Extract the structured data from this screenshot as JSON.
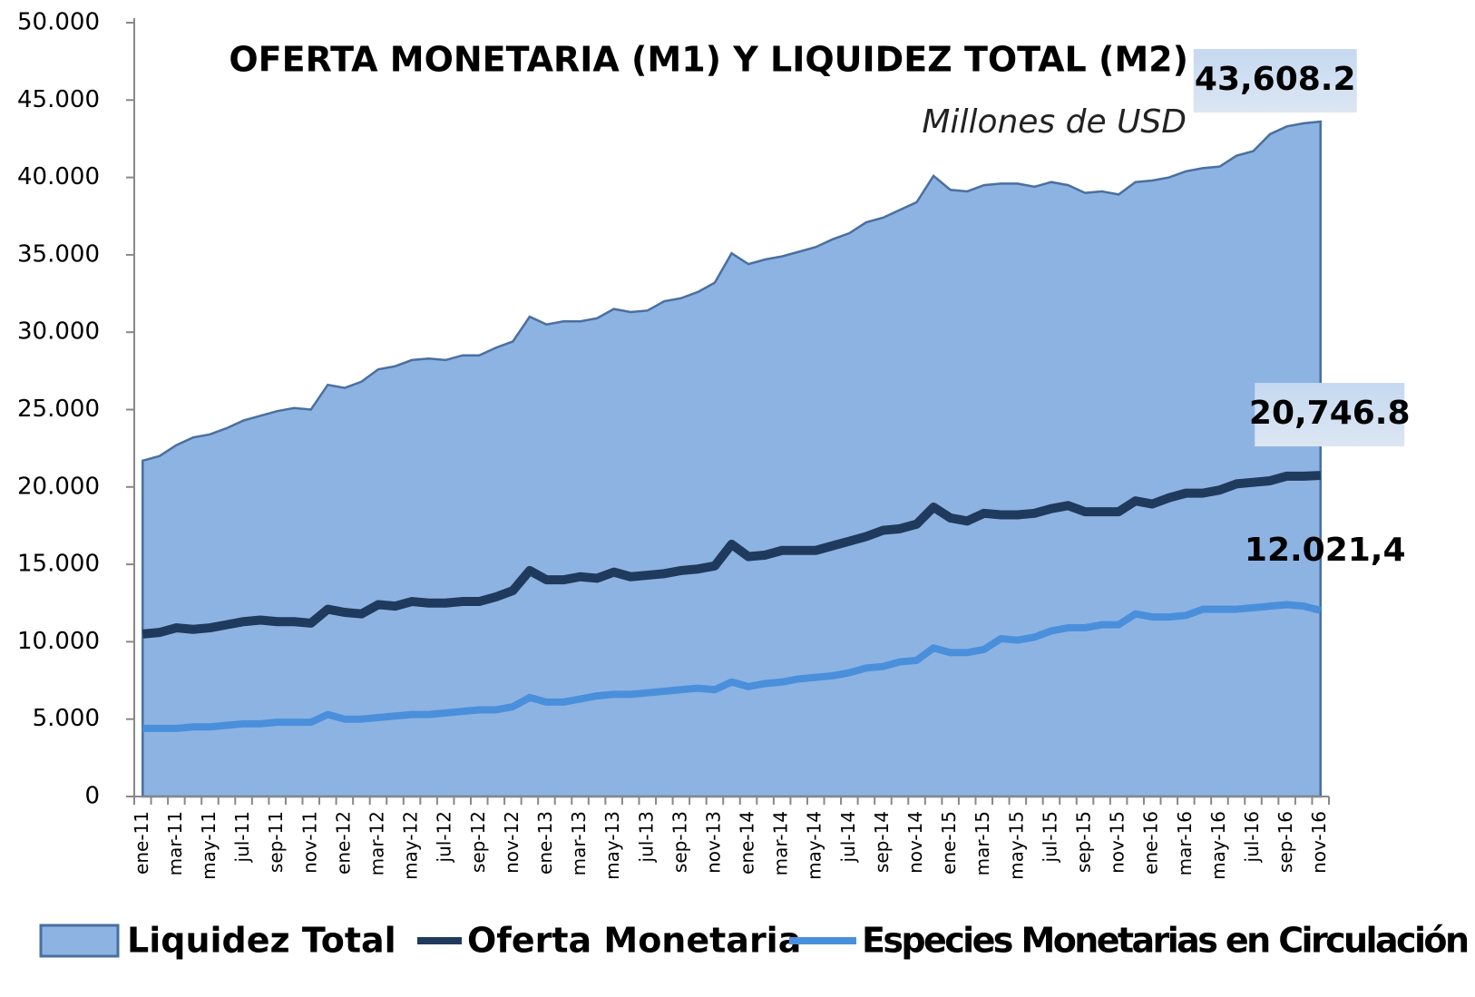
{
  "chart_data": {
    "type": "line",
    "title": "OFERTA MONETARIA (M1) Y LIQUIDEZ TOTAL (M2)",
    "subtitle": "Millones de USD",
    "categories": [
      "ene-11",
      null,
      "mar-11",
      null,
      "may-11",
      null,
      "jul-11",
      null,
      "sep-11",
      null,
      "nov-11",
      null,
      "ene-12",
      null,
      "mar-12",
      null,
      "may-12",
      null,
      "jul-12",
      null,
      "sep-12",
      null,
      "nov-12",
      null,
      "ene-13",
      null,
      "mar-13",
      null,
      "may-13",
      null,
      "jul-13",
      null,
      "sep-13",
      null,
      "nov-13",
      null,
      "ene-14",
      null,
      "mar-14",
      null,
      "may-14",
      null,
      "jul-14",
      null,
      "sep-14",
      null,
      "nov-14",
      null,
      "ene-15",
      null,
      "mar-15",
      null,
      "may-15",
      null,
      "jul-15",
      null,
      "sep-15",
      null,
      "nov-15",
      null,
      "ene-16",
      null,
      "mar-16",
      null,
      "may-16",
      null,
      "jul-16",
      null,
      "sep-16",
      null,
      "nov-16"
    ],
    "series": [
      {
        "name": "Liquidez Total",
        "type": "area",
        "color": "#8db3e2",
        "values": [
          21700,
          22000,
          22700,
          23200,
          23400,
          23800,
          24300,
          24600,
          24900,
          25100,
          25000,
          26600,
          26400,
          26800,
          27600,
          27800,
          28200,
          28300,
          28200,
          28500,
          28500,
          29000,
          29400,
          31000,
          30500,
          30700,
          30700,
          30900,
          31500,
          31300,
          31400,
          32000,
          32200,
          32600,
          33200,
          35100,
          34400,
          34700,
          34900,
          35200,
          35500,
          36000,
          36400,
          37100,
          37400,
          37900,
          38400,
          40100,
          39200,
          39100,
          39500,
          39600,
          39600,
          39400,
          39700,
          39500,
          39000,
          39100,
          38900,
          39700,
          39800,
          40000,
          40400,
          40600,
          40700,
          41400,
          41700,
          42800,
          43300,
          43500,
          43608.2
        ],
        "value_labels": [
          null,
          null,
          null,
          null,
          null,
          null,
          null,
          null,
          null,
          null,
          null,
          null,
          null,
          null,
          null,
          null,
          null,
          null,
          null,
          null,
          null,
          null,
          null,
          null,
          null,
          null,
          null,
          null,
          null,
          null,
          null,
          null,
          null,
          null,
          null,
          null,
          null,
          null,
          null,
          null,
          null,
          null,
          null,
          null,
          null,
          null,
          null,
          null,
          null,
          null,
          null,
          null,
          null,
          null,
          null,
          null,
          null,
          null,
          null,
          null,
          null,
          null,
          null,
          null,
          null,
          null,
          null,
          null,
          null,
          null,
          "43,608.2"
        ]
      },
      {
        "name": "Oferta Monetaria",
        "type": "line",
        "color": "#1f3a5c",
        "values": [
          10500,
          10600,
          10900,
          10800,
          10900,
          11100,
          11300,
          11400,
          11300,
          11300,
          11200,
          12100,
          11900,
          11800,
          12400,
          12300,
          12600,
          12500,
          12500,
          12600,
          12600,
          12900,
          13300,
          14600,
          14000,
          14000,
          14200,
          14100,
          14500,
          14200,
          14300,
          14400,
          14600,
          14700,
          14900,
          16300,
          15500,
          15600,
          15900,
          15900,
          15900,
          16200,
          16500,
          16800,
          17200,
          17300,
          17600,
          18700,
          18000,
          17800,
          18300,
          18200,
          18200,
          18300,
          18600,
          18800,
          18400,
          18400,
          18400,
          19100,
          18900,
          19300,
          19600,
          19600,
          19800,
          20200,
          20300,
          20400,
          20700,
          20700,
          20746.8
        ],
        "value_labels": [
          null,
          null,
          null,
          null,
          null,
          null,
          null,
          null,
          null,
          null,
          null,
          null,
          null,
          null,
          null,
          null,
          null,
          null,
          null,
          null,
          null,
          null,
          null,
          null,
          null,
          null,
          null,
          null,
          null,
          null,
          null,
          null,
          null,
          null,
          null,
          null,
          null,
          null,
          null,
          null,
          null,
          null,
          null,
          null,
          null,
          null,
          null,
          null,
          null,
          null,
          null,
          null,
          null,
          null,
          null,
          null,
          null,
          null,
          null,
          null,
          null,
          null,
          null,
          null,
          null,
          null,
          null,
          null,
          null,
          null,
          "20,746.8"
        ]
      },
      {
        "name": "Especies Monetarias en Circulación",
        "type": "line",
        "color": "#4a8fdb",
        "values": [
          4400,
          4400,
          4400,
          4500,
          4500,
          4600,
          4700,
          4700,
          4800,
          4800,
          4800,
          5300,
          5000,
          5000,
          5100,
          5200,
          5300,
          5300,
          5400,
          5500,
          5600,
          5600,
          5800,
          6400,
          6100,
          6100,
          6300,
          6500,
          6600,
          6600,
          6700,
          6800,
          6900,
          7000,
          6900,
          7400,
          7100,
          7300,
          7400,
          7600,
          7700,
          7800,
          8000,
          8300,
          8400,
          8700,
          8800,
          9600,
          9300,
          9300,
          9500,
          10200,
          10100,
          10300,
          10700,
          10900,
          10900,
          11100,
          11100,
          11800,
          11600,
          11600,
          11700,
          12100,
          12100,
          12100,
          12200,
          12300,
          12400,
          12300,
          12021.4
        ],
        "value_labels": [
          null,
          null,
          null,
          null,
          null,
          null,
          null,
          null,
          null,
          null,
          null,
          null,
          null,
          null,
          null,
          null,
          null,
          null,
          null,
          null,
          null,
          null,
          null,
          null,
          null,
          null,
          null,
          null,
          null,
          null,
          null,
          null,
          null,
          null,
          null,
          null,
          null,
          null,
          null,
          null,
          null,
          null,
          null,
          null,
          null,
          null,
          null,
          null,
          null,
          null,
          null,
          null,
          null,
          null,
          null,
          null,
          null,
          null,
          null,
          null,
          null,
          null,
          null,
          null,
          null,
          null,
          null,
          null,
          null,
          null,
          "12.021,4"
        ]
      }
    ],
    "ylim": [
      0,
      50000
    ],
    "yticks": [
      {
        "value": 0,
        "label": "0"
      },
      {
        "value": 5000,
        "label": "5.000"
      },
      {
        "value": 10000,
        "label": "10.000"
      },
      {
        "value": 15000,
        "label": "15.000"
      },
      {
        "value": 20000,
        "label": "20.000"
      },
      {
        "value": 25000,
        "label": "25.000"
      },
      {
        "value": 30000,
        "label": "30.000"
      },
      {
        "value": 35000,
        "label": "35.000"
      },
      {
        "value": 40000,
        "label": "40.000"
      },
      {
        "value": 45000,
        "label": "45.000"
      },
      {
        "value": 50000,
        "label": "50.000"
      }
    ],
    "grid": false,
    "legend": "bottom"
  }
}
